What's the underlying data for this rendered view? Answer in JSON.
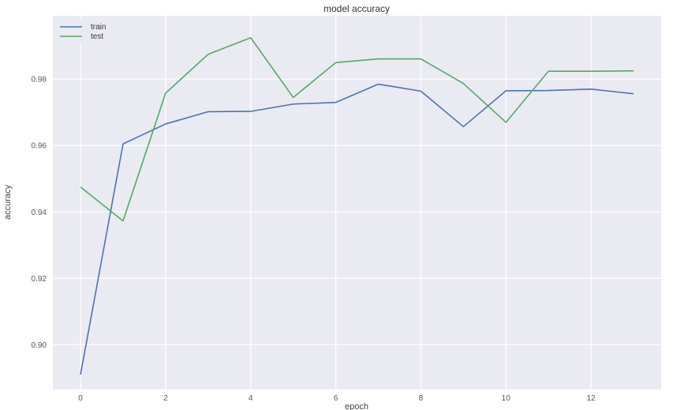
{
  "chart_data": {
    "type": "line",
    "title": "model accuracy",
    "xlabel": "epoch",
    "ylabel": "accuracy",
    "x": [
      0,
      1,
      2,
      3,
      4,
      5,
      6,
      7,
      8,
      9,
      10,
      11,
      12,
      13
    ],
    "xticks": [
      0,
      2,
      4,
      6,
      8,
      10,
      12
    ],
    "yticks": [
      0.9,
      0.92,
      0.94,
      0.96,
      0.98
    ],
    "ytick_labels": [
      "0.90",
      "0.92",
      "0.94",
      "0.96",
      "0.98"
    ],
    "xlim": [
      -0.65,
      13.65
    ],
    "ylim": [
      0.8865,
      0.9991
    ],
    "grid": true,
    "legend_position": "top-left",
    "series": [
      {
        "name": "train",
        "color": "#4c72b0",
        "values": [
          0.891,
          0.9605,
          0.9665,
          0.9702,
          0.9703,
          0.9725,
          0.973,
          0.9785,
          0.9764,
          0.9657,
          0.9765,
          0.9766,
          0.977,
          0.9756
        ]
      },
      {
        "name": "test",
        "color": "#55a868",
        "values": [
          0.9475,
          0.9373,
          0.9758,
          0.9875,
          0.9925,
          0.9745,
          0.985,
          0.9861,
          0.9861,
          0.9787,
          0.967,
          0.9824,
          0.9824,
          0.9825
        ]
      }
    ]
  }
}
